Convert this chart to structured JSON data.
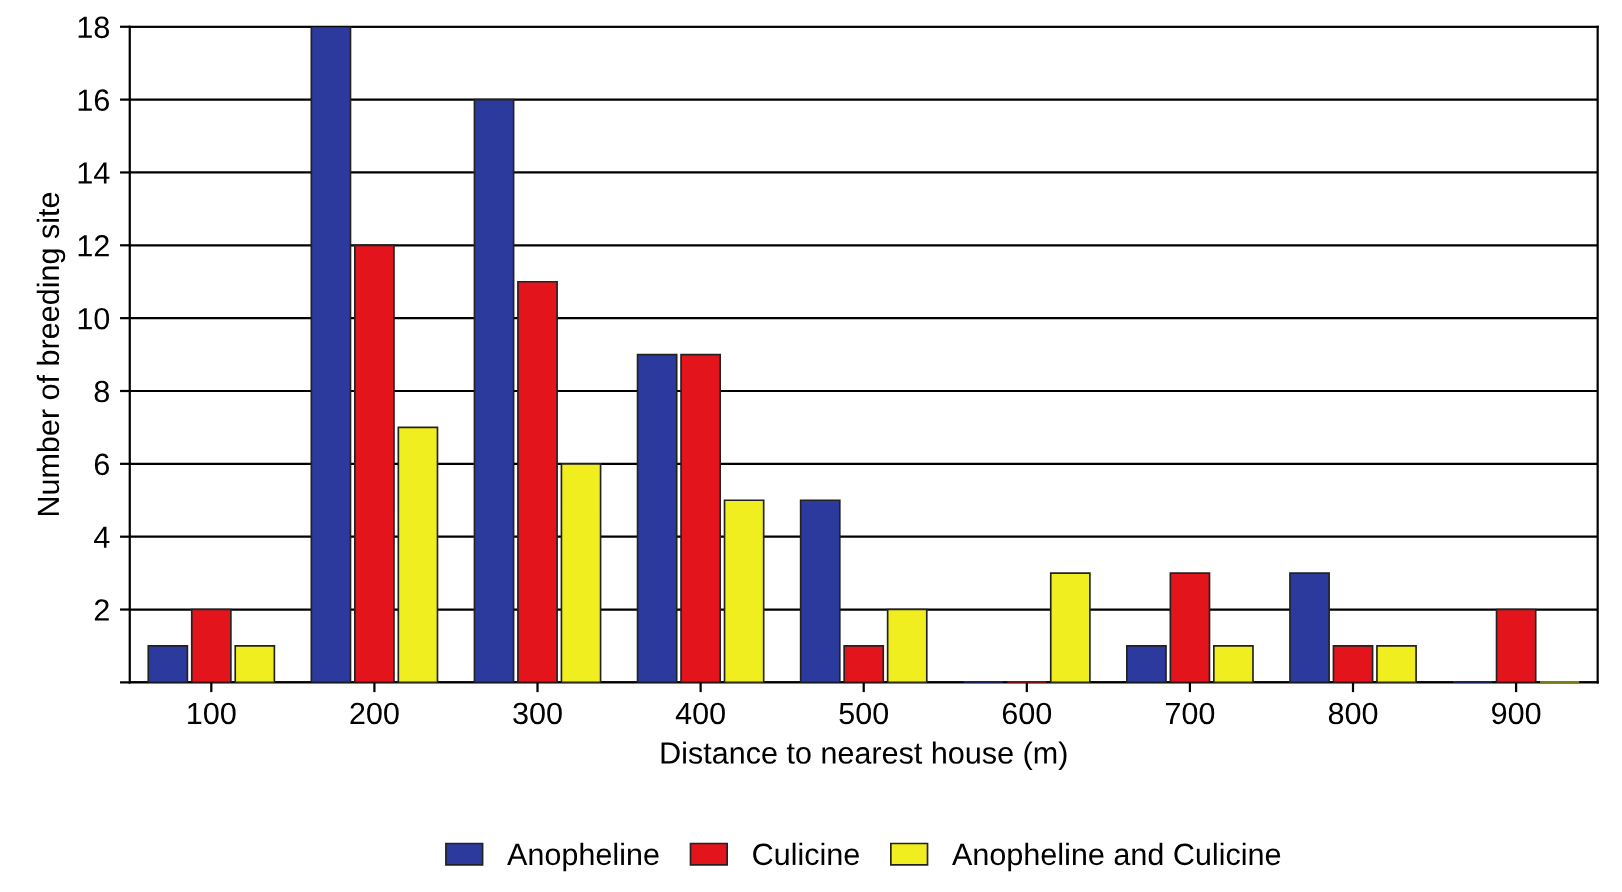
{
  "chart_data": {
    "type": "bar",
    "xlabel": "Distance to nearest house (m)",
    "ylabel": "Number of breeding site",
    "categories": [
      "100",
      "200",
      "300",
      "400",
      "500",
      "600",
      "700",
      "800",
      "900"
    ],
    "series": [
      {
        "name": "Anopheline",
        "color": "#2b3a9c",
        "values": [
          1,
          18,
          16,
          9,
          5,
          0,
          1,
          3,
          0
        ]
      },
      {
        "name": "Culicine",
        "color": "#e3141c",
        "values": [
          2,
          12,
          11,
          9,
          1,
          0,
          3,
          1,
          2
        ]
      },
      {
        "name": "Anopheline and Culicine",
        "color": "#f0ee1e",
        "values": [
          1,
          7,
          6,
          5,
          2,
          3,
          1,
          1,
          0
        ]
      }
    ],
    "ylim": [
      0,
      18
    ],
    "yticks": [
      {
        "value": 0,
        "label": null
      },
      2,
      4,
      6,
      8,
      10,
      12,
      14,
      16,
      18
    ],
    "grid": "y",
    "legend": "bottom"
  }
}
